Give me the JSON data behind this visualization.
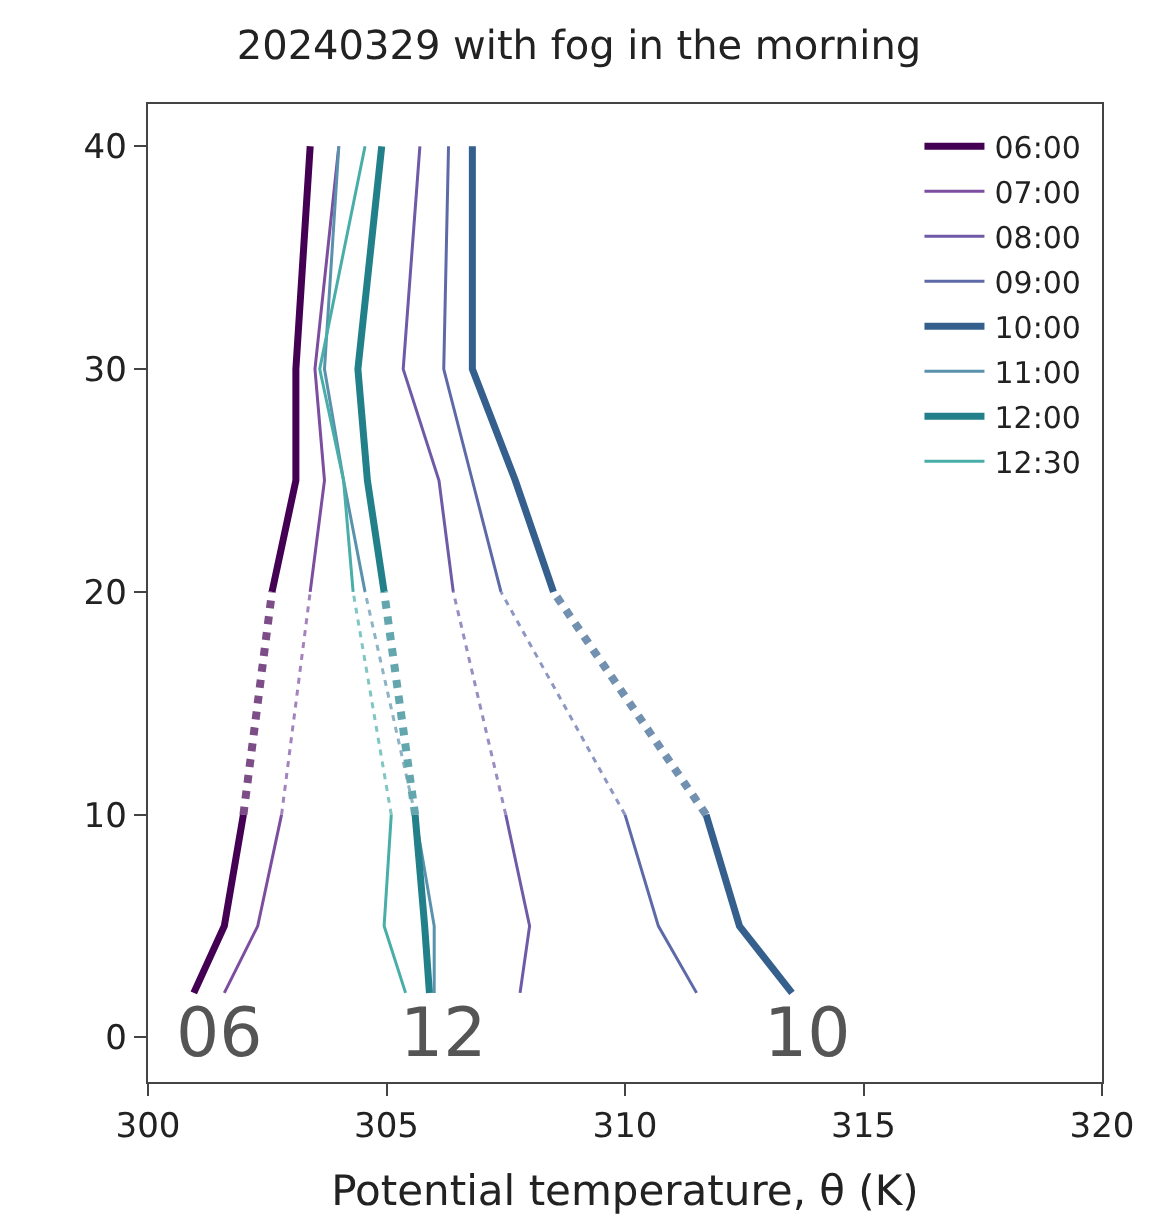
{
  "chart_data": {
    "type": "line",
    "title": "20240329 with fog in the morning",
    "xlabel": "Potential temperature, θ (K)",
    "xlim": [
      300,
      320
    ],
    "xticks": [
      300,
      305,
      310,
      315,
      320
    ],
    "ylim": [
      -2,
      41.9
    ],
    "yticks": [
      0,
      10,
      20,
      30,
      40
    ],
    "legend": "top right",
    "marker": "none",
    "series": [
      {
        "name": "06:00",
        "color": "#440154",
        "line_style": "solid",
        "x": [
          300.96,
          301.6,
          302.0,
          null,
          302.6,
          303.1,
          303.1,
          303.4
        ],
        "values": [
          2,
          5,
          10,
          null,
          20,
          25,
          30,
          40
        ]
      },
      {
        "name": "07:00",
        "color": "#7d4e9f",
        "line_style": "solid",
        "x": [
          301.6,
          302.3,
          302.8,
          null,
          303.4,
          303.7,
          303.5,
          304.0
        ],
        "values": [
          2,
          5,
          10,
          null,
          20,
          25,
          30,
          40
        ]
      },
      {
        "name": "08:00",
        "color": "#6f5aa8",
        "line_style": "solid",
        "x": [
          307.8,
          308.0,
          307.5,
          null,
          306.4,
          306.1,
          305.35,
          305.7
        ],
        "values": [
          2,
          5,
          10,
          null,
          20,
          25,
          30,
          40
        ]
      },
      {
        "name": "09:00",
        "color": "#5e6aa8",
        "line_style": "solid",
        "x": [
          311.5,
          310.7,
          310.0,
          null,
          307.4,
          306.8,
          306.2,
          306.3
        ],
        "values": [
          2,
          5,
          10,
          null,
          20,
          25,
          30,
          40
        ]
      },
      {
        "name": "10:00",
        "color": "#355f8d",
        "line_style": "solid",
        "x": [
          313.5,
          312.4,
          311.7,
          null,
          308.5,
          307.7,
          306.8,
          306.8
        ],
        "values": [
          2,
          5,
          10,
          null,
          20,
          25,
          30,
          40
        ]
      },
      {
        "name": "11:00",
        "color": "#5a92ae",
        "line_style": "solid",
        "x": [
          306.0,
          306.0,
          305.6,
          null,
          304.55,
          304.1,
          303.7,
          304.0
        ],
        "values": [
          2,
          5,
          10,
          null,
          20,
          25,
          30,
          40
        ]
      },
      {
        "name": "12:00",
        "color": "#21808a",
        "line_style": "solid",
        "x": [
          305.9,
          305.8,
          305.6,
          null,
          304.95,
          304.6,
          304.4,
          304.9
        ],
        "values": [
          2,
          5,
          10,
          null,
          20,
          25,
          30,
          40
        ]
      },
      {
        "name": "12:30",
        "color": "#4aaea8",
        "line_style": "solid",
        "x": [
          305.4,
          304.95,
          305.1,
          null,
          304.3,
          304.1,
          303.6,
          304.55
        ],
        "values": [
          2,
          5,
          10,
          null,
          20,
          25,
          30,
          40
        ]
      },
      {
        "color": "#7c4d87",
        "line_style": "dotted",
        "x": [
          302.0,
          302.6
        ],
        "values": [
          10,
          20
        ]
      },
      {
        "color": "#a483bc",
        "line_style": "dotted",
        "x": [
          302.8,
          303.4
        ],
        "values": [
          10,
          20
        ]
      },
      {
        "color": "#9a8cc2",
        "line_style": "dotted",
        "x": [
          307.5,
          306.4
        ],
        "values": [
          10,
          20
        ]
      },
      {
        "color": "#8e97c2",
        "line_style": "dotted",
        "x": [
          310.0,
          307.4
        ],
        "values": [
          10,
          20
        ]
      },
      {
        "color": "#7290b0",
        "line_style": "dotted",
        "x": [
          311.7,
          308.5
        ],
        "values": [
          10,
          20
        ]
      },
      {
        "color": "#8cb3c6",
        "line_style": "dotted",
        "x": [
          305.6,
          304.55
        ],
        "values": [
          10,
          20
        ]
      },
      {
        "color": "#64a6ad",
        "line_style": "dotted",
        "x": [
          305.6,
          304.95
        ],
        "values": [
          10,
          20
        ]
      },
      {
        "color": "#80c6c2",
        "line_style": "dotted",
        "x": [
          305.1,
          304.3
        ],
        "values": [
          10,
          20
        ]
      }
    ],
    "annotations": [
      "06",
      "12",
      "10"
    ]
  }
}
